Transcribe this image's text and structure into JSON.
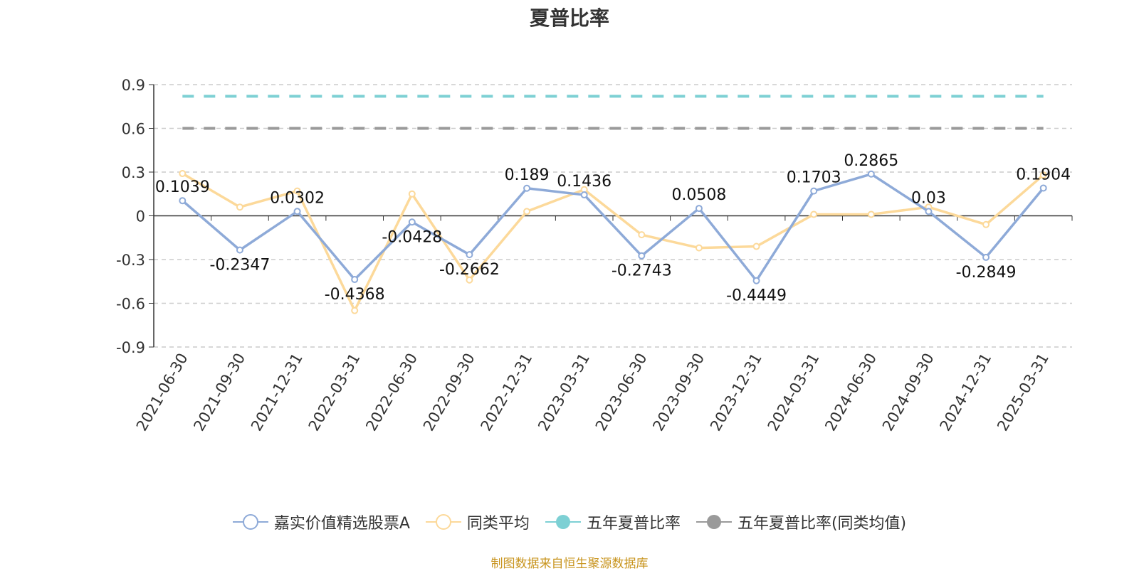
{
  "chart_data": {
    "type": "line",
    "title": "夏普比率",
    "categories": [
      "2021-06-30",
      "2021-09-30",
      "2021-12-31",
      "2022-03-31",
      "2022-06-30",
      "2022-09-30",
      "2022-12-31",
      "2023-03-31",
      "2023-06-30",
      "2023-09-30",
      "2023-12-31",
      "2024-03-31",
      "2024-06-30",
      "2024-09-30",
      "2024-12-31",
      "2025-03-31"
    ],
    "ylim": [
      -0.9,
      0.9
    ],
    "yticks": [
      "0.9",
      "0.6",
      "0.3",
      "0",
      "-0.3",
      "-0.6",
      "-0.9"
    ],
    "grid": true,
    "legend_position": "bottom",
    "series": [
      {
        "name": "嘉实价值精选股票A",
        "color": "#8eaad8",
        "values": [
          0.1039,
          -0.2347,
          0.0302,
          -0.4368,
          -0.0428,
          -0.2662,
          0.189,
          0.1436,
          -0.2743,
          0.0508,
          -0.4449,
          0.1703,
          0.2865,
          0.03,
          -0.2849,
          0.1904
        ],
        "labels": [
          "0.1039",
          "-0.2347",
          "0.0302",
          "-0.4368",
          "-0.0428",
          "-0.2662",
          "0.189",
          "0.1436",
          "-0.2743",
          "0.0508",
          "-0.4449",
          "0.1703",
          "0.2865",
          "0.03",
          "-0.2849",
          "0.1904"
        ]
      },
      {
        "name": "同类平均",
        "color": "#fcd99a",
        "values": [
          0.29,
          0.06,
          0.17,
          -0.65,
          0.15,
          -0.44,
          0.03,
          0.18,
          -0.13,
          -0.22,
          -0.21,
          0.01,
          0.01,
          0.06,
          -0.06,
          0.28
        ]
      },
      {
        "name": "五年夏普比率",
        "color": "#7dd0d4",
        "constant": 0.82
      },
      {
        "name": "五年夏普比率(同类均值)",
        "color": "#9a9a9a",
        "constant": 0.6
      }
    ]
  },
  "source_note": "制图数据来自恒生聚源数据库"
}
